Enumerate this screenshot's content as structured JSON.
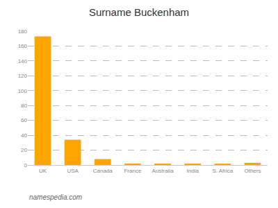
{
  "chart_data": {
    "type": "bar",
    "title": "Surname Buckenham",
    "categories": [
      "UK",
      "USA",
      "Canada",
      "France",
      "Australia",
      "India",
      "S. Africa",
      "Others"
    ],
    "values": [
      173,
      34,
      8,
      2,
      2,
      2,
      1,
      3
    ],
    "color": "#FFA500",
    "ylim": [
      0,
      180
    ],
    "yticks": [
      0,
      20,
      40,
      60,
      80,
      100,
      120,
      140,
      160,
      180
    ],
    "grid": true,
    "annotations": [
      "namespedia.com"
    ]
  }
}
